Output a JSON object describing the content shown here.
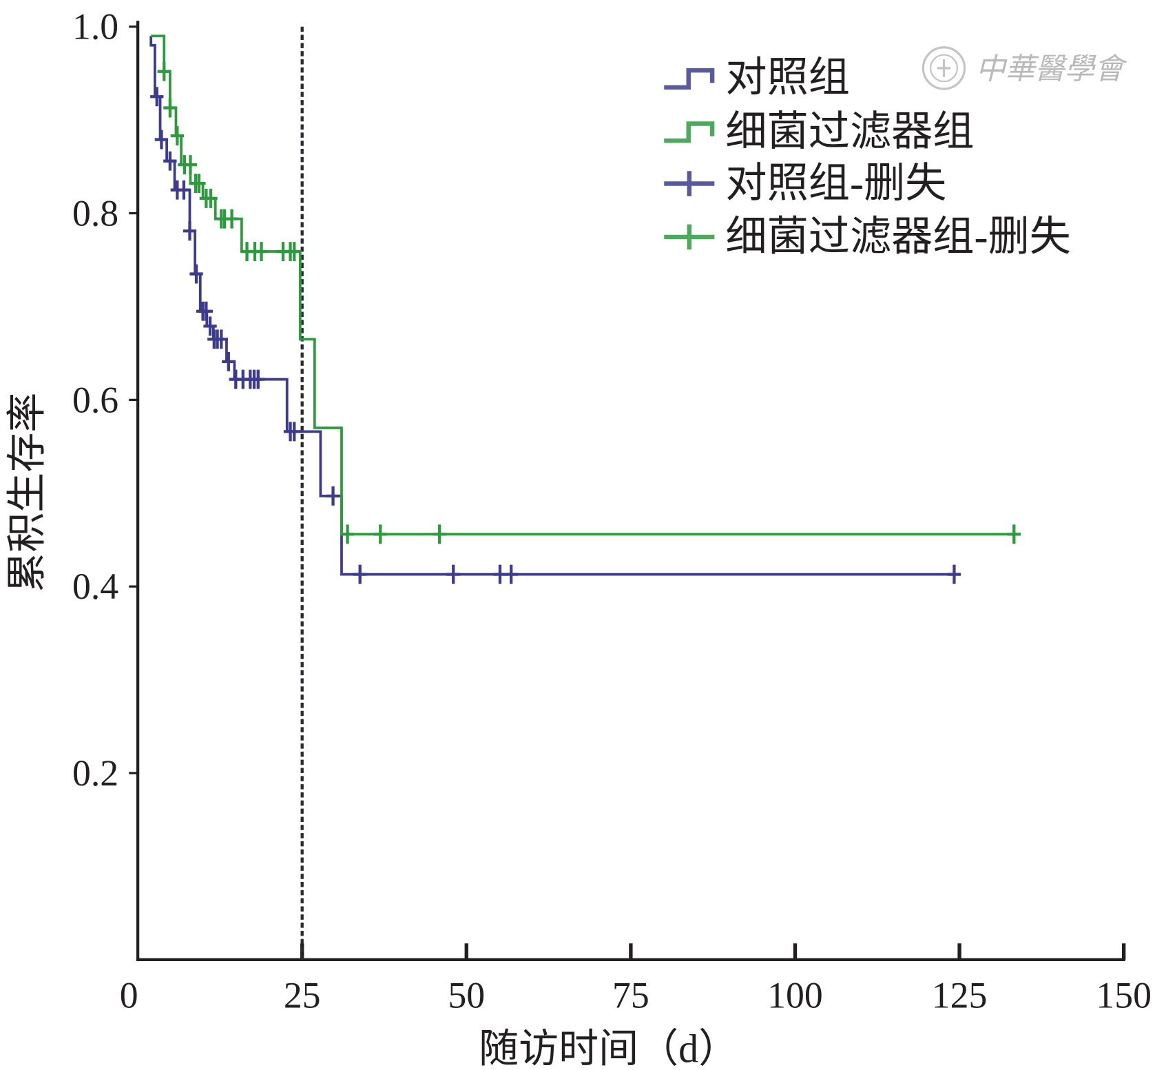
{
  "chart_data": {
    "type": "line",
    "curve": "step",
    "xlabel": "随访时间（d）",
    "ylabel": "累积生存率",
    "xlim": [
      0,
      150
    ],
    "ylim": [
      0,
      1.0
    ],
    "x_ticks": [
      0,
      25,
      50,
      75,
      100,
      125,
      150
    ],
    "y_ticks": [
      1.0,
      0.8,
      0.6,
      0.4,
      0.2
    ],
    "y_tick_labels": [
      "1.0",
      "0.8",
      "0.6",
      "0.4",
      "0.2"
    ],
    "grid": false,
    "legend": "top-right",
    "reference_line": {
      "axis": "x",
      "value": 25,
      "style": "dashed",
      "color": "#2a2a35"
    },
    "series": [
      {
        "name": "对照组",
        "censor_label": "对照组-删失",
        "color": "#3d3b8e",
        "start": [
          2,
          0.99
        ],
        "steps": [
          [
            2.0,
            0.98
          ],
          [
            2.6,
            0.925
          ],
          [
            3.4,
            0.879
          ],
          [
            4.4,
            0.856
          ],
          [
            5.6,
            0.825
          ],
          [
            7.9,
            0.781
          ],
          [
            8.7,
            0.735
          ],
          [
            9.5,
            0.695
          ],
          [
            10.5,
            0.679
          ],
          [
            11.5,
            0.665
          ],
          [
            13.5,
            0.641
          ],
          [
            14.7,
            0.622
          ],
          [
            22.7,
            0.566
          ],
          [
            27.8,
            0.497
          ],
          [
            31.0,
            0.413
          ]
        ],
        "end": 125,
        "censored": [
          [
            2.9,
            0.925
          ],
          [
            3.6,
            0.879
          ],
          [
            4.9,
            0.856
          ],
          [
            6.0,
            0.825
          ],
          [
            7.0,
            0.825
          ],
          [
            7.9,
            0.781
          ],
          [
            8.9,
            0.735
          ],
          [
            9.9,
            0.695
          ],
          [
            10.4,
            0.695
          ],
          [
            11.0,
            0.679
          ],
          [
            11.6,
            0.665
          ],
          [
            12.1,
            0.665
          ],
          [
            12.7,
            0.665
          ],
          [
            13.8,
            0.641
          ],
          [
            14.9,
            0.622
          ],
          [
            16.0,
            0.622
          ],
          [
            17.1,
            0.622
          ],
          [
            17.7,
            0.622
          ],
          [
            18.3,
            0.622
          ],
          [
            23.2,
            0.566
          ],
          [
            23.8,
            0.566
          ],
          [
            29.7,
            0.497
          ],
          [
            33.8,
            0.413
          ],
          [
            48.0,
            0.413
          ],
          [
            55.1,
            0.413
          ],
          [
            56.8,
            0.413
          ],
          [
            124.2,
            0.413
          ]
        ]
      },
      {
        "name": "细菌过滤器组",
        "censor_label": "细菌过滤器组-删失",
        "color": "#2e9a3e",
        "start": [
          2,
          0.99
        ],
        "steps": [
          [
            4.0,
            0.952
          ],
          [
            4.9,
            0.913
          ],
          [
            5.8,
            0.883
          ],
          [
            6.6,
            0.852
          ],
          [
            8.0,
            0.832
          ],
          [
            9.9,
            0.816
          ],
          [
            11.8,
            0.794
          ],
          [
            15.8,
            0.759
          ],
          [
            24.7,
            0.665
          ],
          [
            26.9,
            0.57
          ],
          [
            31.0,
            0.456
          ]
        ],
        "end": 134,
        "censored": [
          [
            4.0,
            0.952
          ],
          [
            4.9,
            0.913
          ],
          [
            6.0,
            0.883
          ],
          [
            7.1,
            0.852
          ],
          [
            8.0,
            0.852
          ],
          [
            8.8,
            0.832
          ],
          [
            9.3,
            0.832
          ],
          [
            10.4,
            0.816
          ],
          [
            11.1,
            0.816
          ],
          [
            12.7,
            0.794
          ],
          [
            13.2,
            0.794
          ],
          [
            14.3,
            0.794
          ],
          [
            16.6,
            0.759
          ],
          [
            17.8,
            0.759
          ],
          [
            18.8,
            0.759
          ],
          [
            22.1,
            0.759
          ],
          [
            23.2,
            0.759
          ],
          [
            23.8,
            0.759
          ],
          [
            31.9,
            0.456
          ],
          [
            36.9,
            0.456
          ],
          [
            45.9,
            0.456
          ],
          [
            133.3,
            0.456
          ]
        ]
      }
    ]
  },
  "watermark": "中華醫學會"
}
